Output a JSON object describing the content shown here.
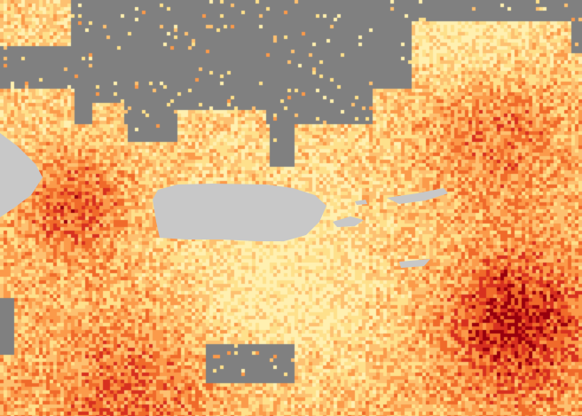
{
  "map": {
    "colors": {
      "no_data": "#808080",
      "land": "#C8C8C8",
      "scale": [
        "#FFF0B0",
        "#FEE08B",
        "#FDC070",
        "#FB9A4A",
        "#F06A2A",
        "#D7301F",
        "#99000D"
      ]
    }
  }
}
